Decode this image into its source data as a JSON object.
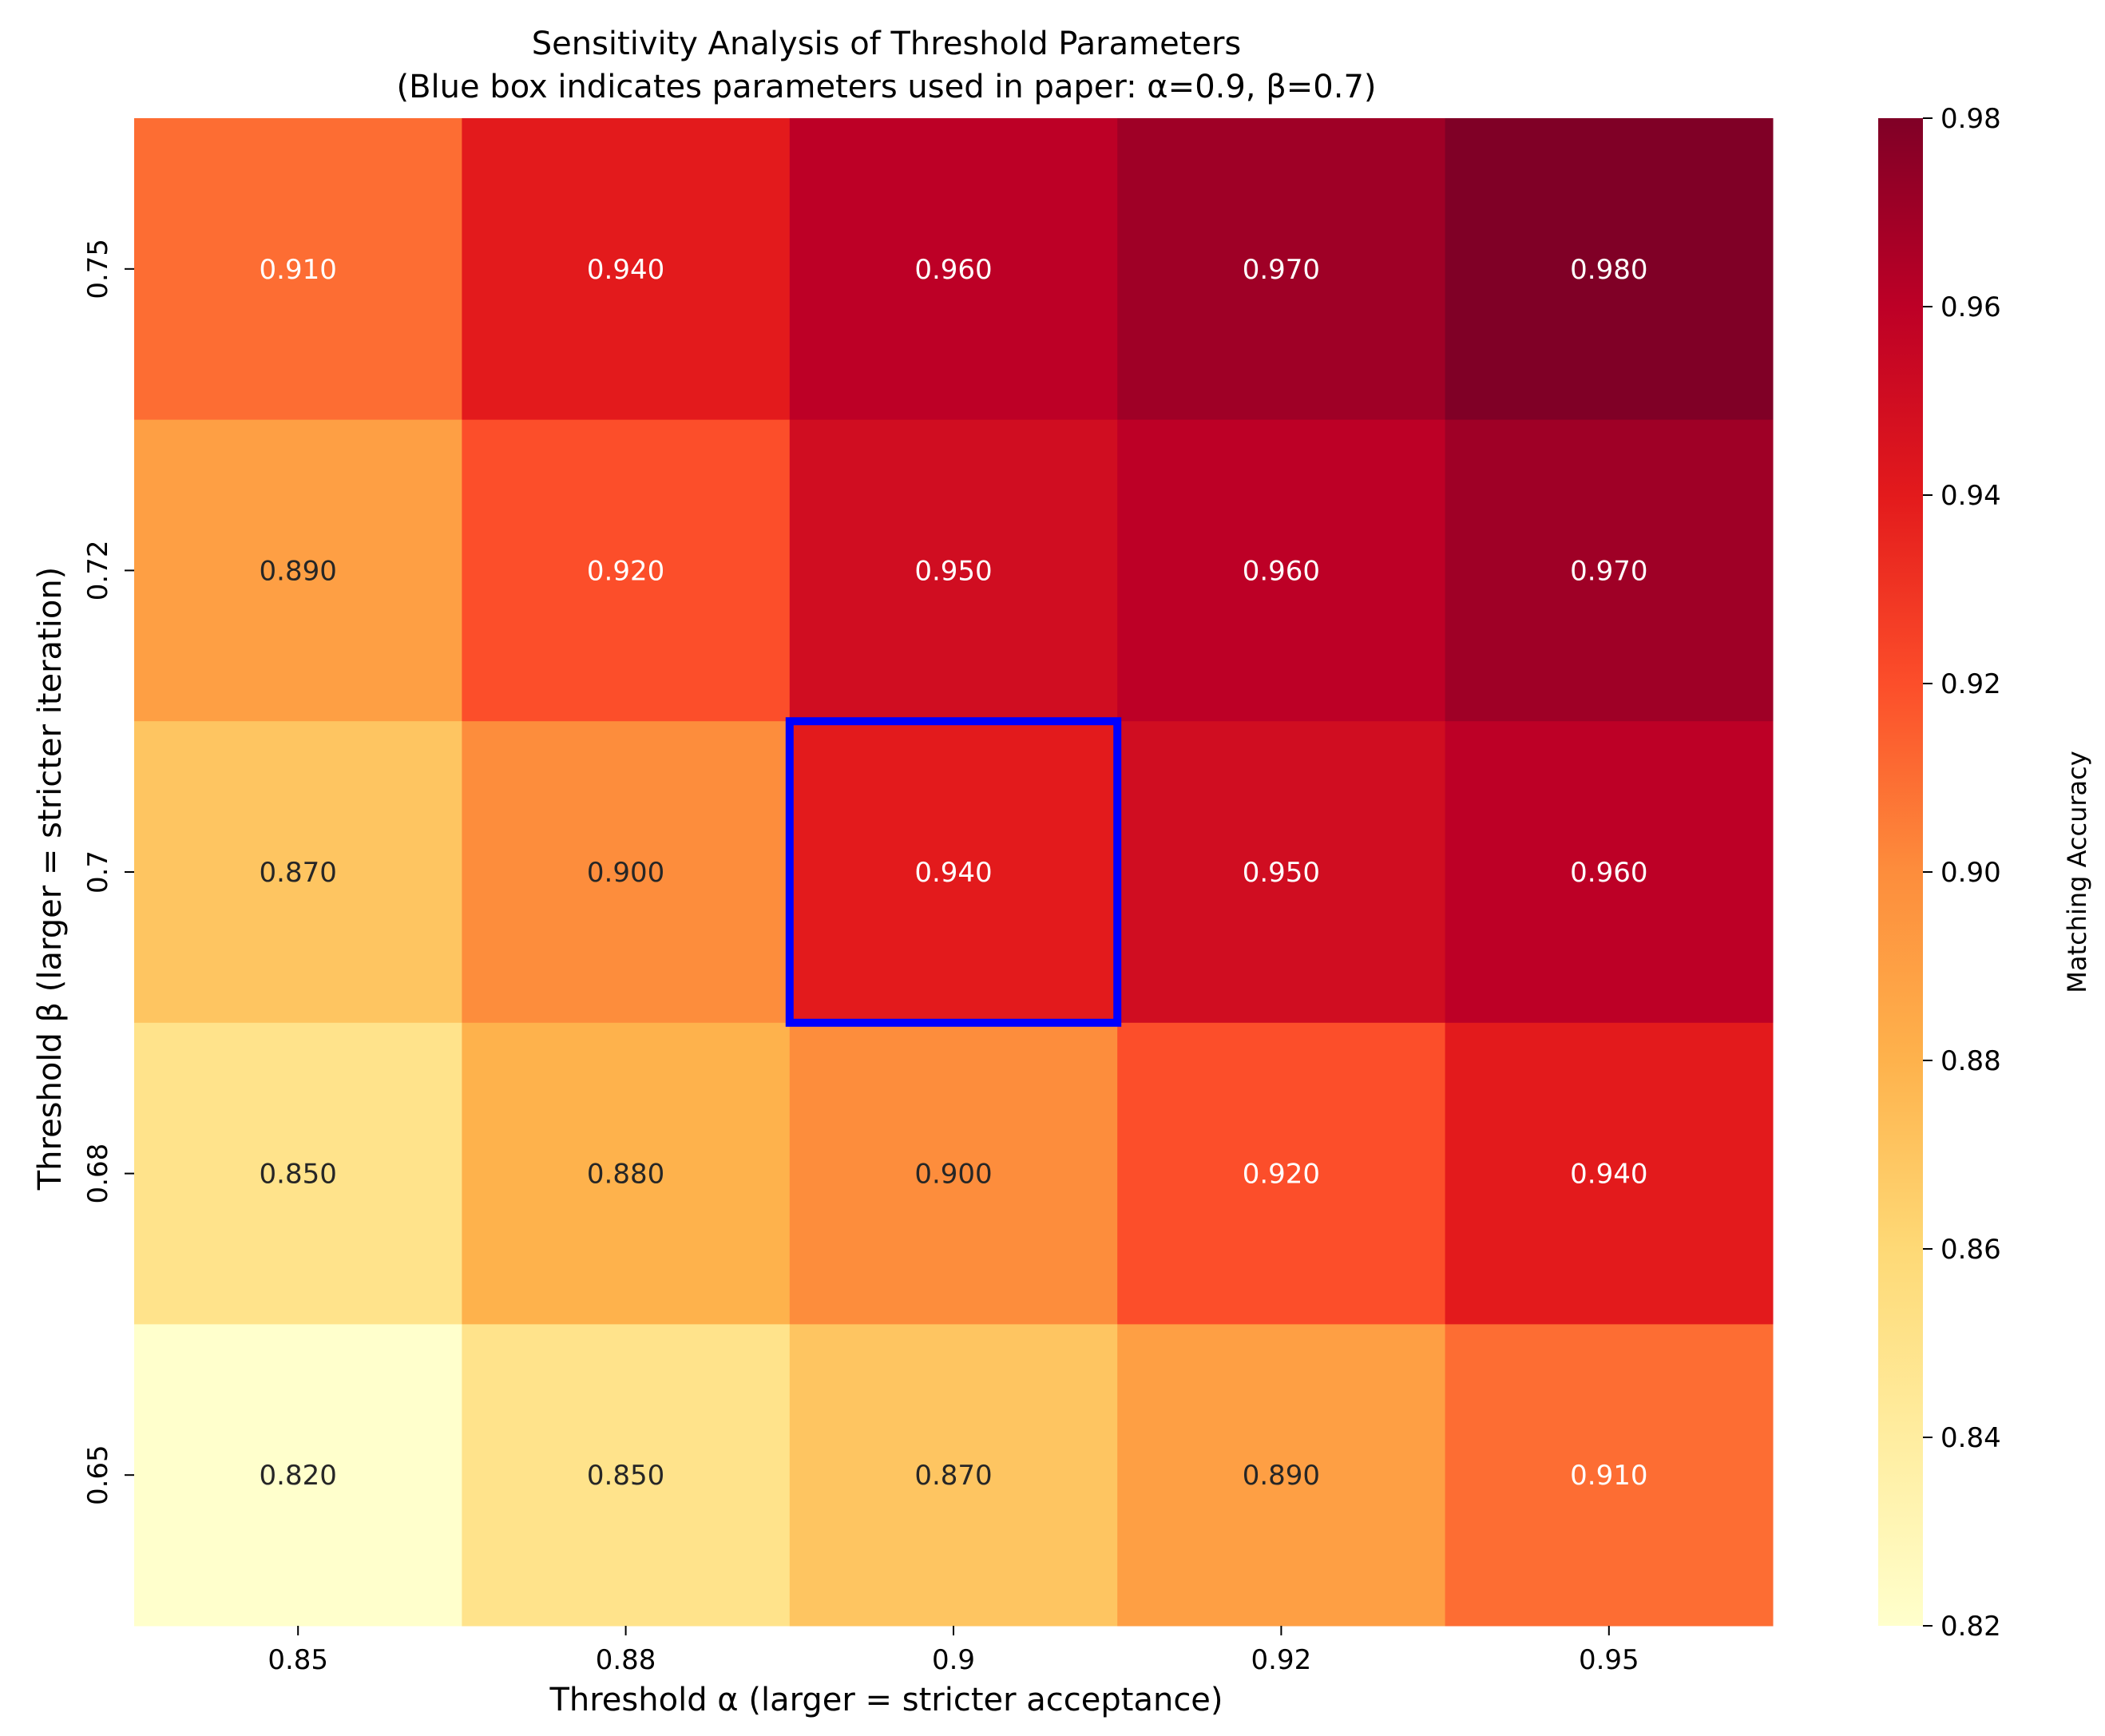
{
  "chart_data": {
    "type": "heatmap",
    "title": "Sensitivity Analysis of Threshold Parameters",
    "subtitle": "(Blue box indicates parameters used in paper: α=0.9, β=0.7)",
    "xlabel": "Threshold α (larger = stricter acceptance)",
    "ylabel": "Threshold β (larger = stricter iteration)",
    "x_categories": [
      "0.85",
      "0.88",
      "0.9",
      "0.92",
      "0.95"
    ],
    "y_categories": [
      "0.75",
      "0.72",
      "0.7",
      "0.68",
      "0.65"
    ],
    "values": [
      [
        0.91,
        0.94,
        0.96,
        0.97,
        0.98
      ],
      [
        0.89,
        0.92,
        0.95,
        0.96,
        0.97
      ],
      [
        0.87,
        0.9,
        0.94,
        0.95,
        0.96
      ],
      [
        0.85,
        0.88,
        0.9,
        0.92,
        0.94
      ],
      [
        0.82,
        0.85,
        0.87,
        0.89,
        0.91
      ]
    ],
    "value_format_decimals": 3,
    "highlight": {
      "x": "0.9",
      "y": "0.7",
      "color": "#0000ff"
    },
    "colormap": "YlOrRd",
    "colorbar": {
      "label": "Matching Accuracy",
      "range": [
        0.82,
        0.98
      ],
      "ticks": [
        "0.82",
        "0.84",
        "0.86",
        "0.88",
        "0.90",
        "0.92",
        "0.94",
        "0.96",
        "0.98"
      ]
    }
  }
}
